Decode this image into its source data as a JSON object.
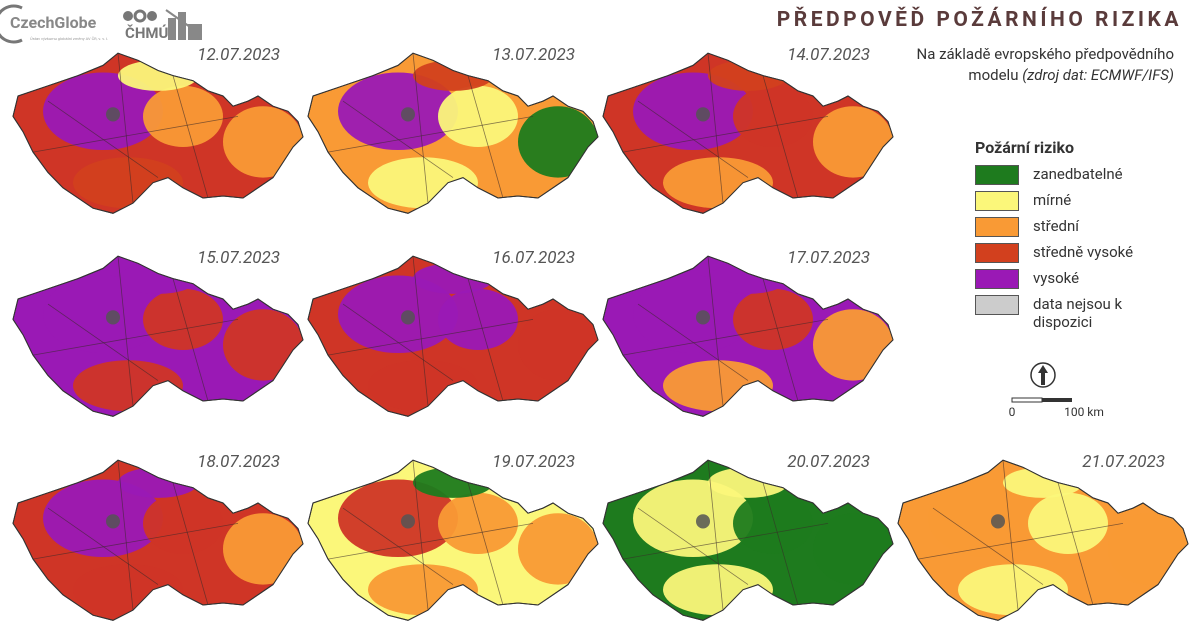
{
  "header": {
    "title": "PŘEDPOVĚĎ POŽÁRNÍHO RIZIKA",
    "subtitle": "Na základě evropského předpovědního modelu",
    "source": "(zdroj dat: ECMWF/IFS)"
  },
  "logos": {
    "czechglobe": "CzechGlobe",
    "czechglobe_sub": "Ústav výzkumu globální změny AV ČR, v. v. i.",
    "chmu": "ČHMÚ"
  },
  "maps": [
    {
      "date": "12.07.2023",
      "base": "#cf3526",
      "patches": [
        "#9a19b5",
        "#f99a35",
        "#f99a35",
        "#d2401e",
        "#fbf77a"
      ]
    },
    {
      "date": "13.07.2023",
      "base": "#f99a35",
      "patches": [
        "#9a19b5",
        "#fbf77a",
        "#1e7b1e",
        "#fbf77a",
        "#d2401e"
      ]
    },
    {
      "date": "14.07.2023",
      "base": "#cf3526",
      "patches": [
        "#9a19b5",
        "#cf3526",
        "#f99a35",
        "#f99a35",
        "#d2401e"
      ]
    },
    {
      "date": "15.07.2023",
      "base": "#9a19b5",
      "patches": [
        "#9a19b5",
        "#cf3526",
        "#cf3526",
        "#cf3526",
        "#9a19b5"
      ]
    },
    {
      "date": "16.07.2023",
      "base": "#cf3526",
      "patches": [
        "#9a19b5",
        "#9a19b5",
        "#cf3526",
        "#cf3526",
        "#9a19b5"
      ]
    },
    {
      "date": "17.07.2023",
      "base": "#9a19b5",
      "patches": [
        "#9a19b5",
        "#cf3526",
        "#f99a35",
        "#f99a35",
        "#9a19b5"
      ]
    },
    {
      "date": "18.07.2023",
      "base": "#cf3526",
      "patches": [
        "#9a19b5",
        "#cf3526",
        "#f99a35",
        "#cf3526",
        "#9a19b5"
      ]
    },
    {
      "date": "19.07.2023",
      "base": "#fbf77a",
      "patches": [
        "#cf3526",
        "#f99a35",
        "#f99a35",
        "#f99a35",
        "#1e7b1e"
      ]
    },
    {
      "date": "20.07.2023",
      "base": "#1e7b1e",
      "patches": [
        "#fbf77a",
        "#1e7b1e",
        "#1e7b1e",
        "#fbf77a",
        "#fbf77a"
      ]
    },
    {
      "date": "21.07.2023",
      "base": "#f99a35",
      "patches": [
        "#f99a35",
        "#fbf77a",
        "#f99a35",
        "#fbf77a",
        "#fbf77a"
      ]
    }
  ],
  "legend": {
    "title": "Požární riziko",
    "items": [
      {
        "label": "zanedbatelné",
        "color": "#1e7b1e"
      },
      {
        "label": "mírné",
        "color": "#fbf77a"
      },
      {
        "label": "střední",
        "color": "#f99a35"
      },
      {
        "label": "středně vysoké",
        "color": "#d2401e"
      },
      {
        "label": "vysoké",
        "color": "#9a19b5"
      },
      {
        "label": "data nejsou k dispozici",
        "color": "#cccccc"
      }
    ]
  },
  "scale": {
    "start": "0",
    "end": "100 km"
  }
}
